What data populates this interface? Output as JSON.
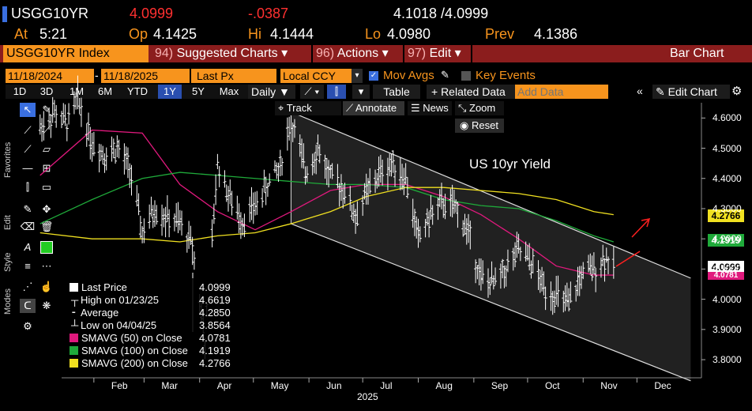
{
  "header": {
    "ticker": "USGG10YR",
    "last": "4.0999",
    "change": "-.0387",
    "bid_ask": "4.1018 /4.0999",
    "at_label": "At",
    "time": "5:21",
    "open_label": "Op",
    "open": "4.1425",
    "high_label": "Hi",
    "high": "4.1444",
    "low_label": "Lo",
    "low": "4.0980",
    "prev_label": "Prev",
    "prev": "4.1386"
  },
  "menubar": {
    "security": "USGG10YR Index",
    "items": [
      {
        "num": "94)",
        "label": "Suggested Charts",
        "caret": "▾"
      },
      {
        "num": "96)",
        "label": "Actions",
        "caret": "▾"
      },
      {
        "num": "97)",
        "label": "Edit",
        "caret": "▾"
      }
    ],
    "right": "Bar Chart"
  },
  "options": {
    "start_date": "11/18/2024",
    "end_date": "11/18/2025",
    "field": "Last Px",
    "currency": "Local CCY",
    "mov_avgs": "Mov Avgs",
    "key_events": "Key Events",
    "periods": [
      "1D",
      "3D",
      "1M",
      "6M",
      "YTD",
      "1Y",
      "5Y",
      "Max"
    ],
    "selected_period": "1Y",
    "frequency": "Daily",
    "table": "Table",
    "related": "+ Related Data",
    "add_data_placeholder": "Add Data",
    "edit_chart": "Edit Chart"
  },
  "chart_tools": {
    "track": "Track",
    "annotate": "Annotate",
    "news": "News",
    "zoom": "Zoom",
    "reset": "Reset"
  },
  "side_labels": [
    "Favorites",
    "Edit",
    "Style",
    "Modes"
  ],
  "chart_data": {
    "type": "line",
    "title": "US 10yr Yield",
    "xlabel": "2025",
    "x_ticks": [
      "Feb",
      "Mar",
      "Apr",
      "May",
      "Jun",
      "Jul",
      "Aug",
      "Sep",
      "Oct",
      "Nov",
      "Dec"
    ],
    "ylim": [
      3.74,
      4.64
    ],
    "y_ticks": [
      "4.6000",
      "4.5000",
      "4.4000",
      "4.3000",
      "4.2000",
      "4.1000",
      "4.0000",
      "3.9000",
      "3.8000"
    ],
    "legend": [
      {
        "label": "Last Price",
        "value": "4.0999",
        "color": "#ffffff"
      },
      {
        "label": "High on 01/23/25",
        "value": "4.6619"
      },
      {
        "label": "Average",
        "value": "4.2850"
      },
      {
        "label": "Low on 04/04/25",
        "value": "3.8564"
      },
      {
        "label": "SMAVG (50)  on Close",
        "value": "4.0781",
        "color": "#e0197d"
      },
      {
        "label": "SMAVG (100)  on Close",
        "value": "4.1919",
        "color": "#1faa3a"
      },
      {
        "label": "SMAVG (200)  on Close",
        "value": "4.2766",
        "color": "#f0e020"
      }
    ],
    "last_tags": [
      {
        "value": "4.2766",
        "color": "#f0e020"
      },
      {
        "value": "4.1919",
        "color": "#1faa3a"
      },
      {
        "value": "4.0999",
        "color": "#ffffff"
      },
      {
        "value": "4.0781",
        "color": "#e0197d"
      }
    ],
    "series": [
      {
        "name": "Last Price",
        "color": "#ffffff",
        "x": [
          "01/02",
          "01/10",
          "01/17",
          "01/23",
          "01/31",
          "02/07",
          "02/14",
          "02/21",
          "02/28",
          "03/07",
          "03/14",
          "03/21",
          "03/28",
          "04/04",
          "04/11",
          "04/18",
          "04/25",
          "05/02",
          "05/09",
          "05/16",
          "05/22",
          "05/30",
          "06/06",
          "06/13",
          "06/20",
          "06/27",
          "07/03",
          "07/11",
          "07/18",
          "07/25",
          "08/01",
          "08/08",
          "08/15",
          "08/22",
          "08/29",
          "09/05",
          "09/12",
          "09/19",
          "09/26",
          "10/03",
          "10/10",
          "10/17",
          "10/24",
          "10/31",
          "11/07",
          "11/14",
          "11/18"
        ],
        "values": [
          4.57,
          4.62,
          4.58,
          4.66,
          4.52,
          4.48,
          4.5,
          4.43,
          4.22,
          4.3,
          4.27,
          4.25,
          4.18,
          3.86,
          4.45,
          4.33,
          4.26,
          4.31,
          4.38,
          4.44,
          4.6,
          4.42,
          4.5,
          4.4,
          4.37,
          4.27,
          4.35,
          4.42,
          4.45,
          4.4,
          4.2,
          4.28,
          4.32,
          4.3,
          4.22,
          4.07,
          4.05,
          4.1,
          4.16,
          4.12,
          4.04,
          4.01,
          3.98,
          4.08,
          4.1,
          4.14,
          4.1
        ]
      },
      {
        "name": "SMAVG (50)  on Close",
        "color": "#e0197d",
        "x": [
          "01/02",
          "01/31",
          "02/28",
          "03/21",
          "04/11",
          "05/02",
          "05/22",
          "06/13",
          "07/03",
          "07/25",
          "08/15",
          "09/05",
          "09/26",
          "10/17",
          "11/07",
          "11/18"
        ],
        "values": [
          4.41,
          4.56,
          4.55,
          4.38,
          4.29,
          4.23,
          4.29,
          4.36,
          4.38,
          4.38,
          4.34,
          4.28,
          4.2,
          4.11,
          4.08,
          4.08
        ]
      },
      {
        "name": "SMAVG (100)  on Close",
        "color": "#1faa3a",
        "x": [
          "01/02",
          "01/31",
          "02/28",
          "03/21",
          "04/11",
          "05/02",
          "05/22",
          "06/13",
          "07/03",
          "07/25",
          "08/15",
          "09/05",
          "09/26",
          "10/17",
          "11/07",
          "11/18"
        ],
        "values": [
          4.25,
          4.33,
          4.4,
          4.42,
          4.41,
          4.4,
          4.39,
          4.38,
          4.38,
          4.37,
          4.33,
          4.31,
          4.3,
          4.26,
          4.21,
          4.19
        ]
      },
      {
        "name": "SMAVG (200)  on Close",
        "color": "#f0e020",
        "x": [
          "01/02",
          "01/31",
          "02/28",
          "03/21",
          "04/11",
          "05/02",
          "05/22",
          "06/13",
          "07/03",
          "07/25",
          "08/15",
          "09/05",
          "09/26",
          "10/17",
          "11/07",
          "11/18"
        ],
        "values": [
          4.22,
          4.2,
          4.2,
          4.19,
          4.21,
          4.22,
          4.25,
          4.29,
          4.34,
          4.37,
          4.37,
          4.36,
          4.35,
          4.33,
          4.29,
          4.28
        ]
      }
    ],
    "channel": {
      "upper": [
        {
          "x": "05/22",
          "y": 4.62
        },
        {
          "x": "12/31",
          "y": 4.07
        }
      ],
      "lower": [
        {
          "x": "05/22",
          "y": 4.25
        },
        {
          "x": "12/31",
          "y": 3.73
        }
      ]
    },
    "grid": false,
    "legend_position": "bottom-left"
  }
}
